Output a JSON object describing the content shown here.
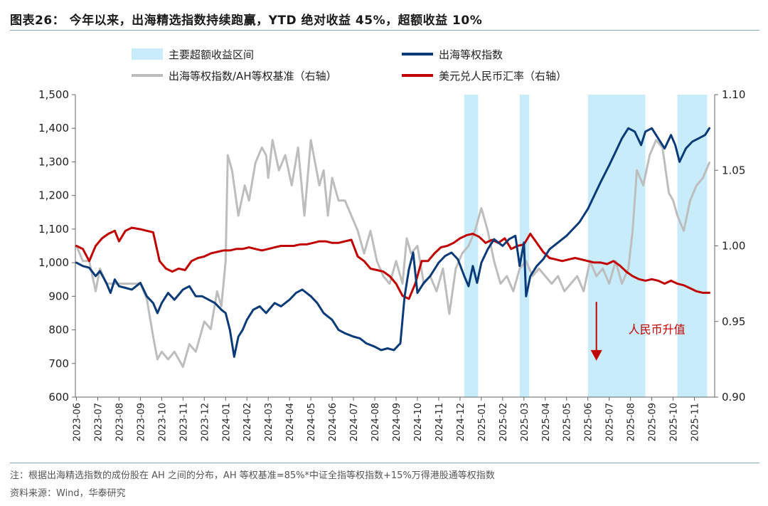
{
  "header": {
    "title": "图表26： 今年以来，出海精选指数持续跑赢，YTD 绝对收益 45%，超额收益 10%"
  },
  "footer": {
    "note": "注：根据出海精选指数的成份股在 AH 之间的分布，AH 等权基准=85%*中证全指等权指数+15%万得港股通等权指数",
    "source": "资料来源：Wind，华泰研究"
  },
  "colors": {
    "shade": "#c9ecfa",
    "navy": "#0b3a78",
    "gray": "#bdbdbd",
    "red": "#c00000",
    "annotation": "#c00000"
  },
  "chart_data": {
    "type": "line",
    "title": "今年以来，出海精选指数持续跑赢，YTD 绝对收益 45%，超额收益 10%",
    "x_start": "2023-06",
    "x_end": "2025-11",
    "categories": [
      "2023-06",
      "2023-07",
      "2023-08",
      "2023-09",
      "2023-10",
      "2023-11",
      "2023-12",
      "2024-01",
      "2024-02",
      "2024-03",
      "2024-04",
      "2024-05",
      "2024-06",
      "2024-07",
      "2024-08",
      "2024-09",
      "2024-10",
      "2024-11",
      "2024-12",
      "2025-01",
      "2025-02",
      "2025-03",
      "2025-04",
      "2025-05",
      "2025-06",
      "2025-07",
      "2025-08",
      "2025-09",
      "2025-10",
      "2025-11"
    ],
    "y_left": {
      "min": 600,
      "max": 1500,
      "ticks": [
        "600",
        "700",
        "800",
        "900",
        "1,000",
        "1,100",
        "1,200",
        "1,300",
        "1,400",
        "1,500"
      ],
      "tick_values": [
        600,
        700,
        800,
        900,
        1000,
        1100,
        1200,
        1300,
        1400,
        1500
      ]
    },
    "y_right": {
      "min": 0.9,
      "max": 1.1,
      "ticks": [
        "0.90",
        "0.95",
        "1.00",
        "1.05",
        "1.10"
      ],
      "tick_values": [
        0.9,
        0.95,
        1.0,
        1.05,
        1.1
      ]
    },
    "legend": [
      {
        "label": "主要超额收益区间",
        "kind": "area",
        "color": "#c9ecfa"
      },
      {
        "label": "出海等权指数",
        "kind": "line",
        "color": "#0b3a78"
      },
      {
        "label": "出海等权指数/AH等权基准（右轴）",
        "kind": "line",
        "color": "#bdbdbd"
      },
      {
        "label": "美元兑人民币汇率（右轴）",
        "kind": "line",
        "color": "#c00000"
      }
    ],
    "shaded_periods": [
      {
        "start": 18.2,
        "end": 18.85
      },
      {
        "start": 20.8,
        "end": 21.25
      },
      {
        "start": 24.0,
        "end": 26.7
      },
      {
        "start": 28.2,
        "end": 29.6
      }
    ],
    "annotation": {
      "text": "人民币升值",
      "x": 24.4,
      "value_top": 0.963,
      "value_bottom": 0.925
    },
    "series": [
      {
        "name": "出海等权指数",
        "axis": "left",
        "color": "#0b3a78",
        "x": [
          0,
          0.3,
          0.6,
          0.9,
          1.1,
          1.4,
          1.6,
          1.8,
          2.0,
          2.3,
          2.6,
          3.0,
          3.3,
          3.6,
          3.8,
          4.0,
          4.3,
          4.6,
          5.0,
          5.3,
          5.6,
          5.9,
          6.2,
          6.5,
          6.8,
          7.0,
          7.2,
          7.4,
          7.6,
          7.8,
          8.0,
          8.3,
          8.6,
          8.9,
          9.3,
          9.6,
          10.0,
          10.3,
          10.6,
          11.0,
          11.3,
          11.6,
          12.0,
          12.3,
          12.6,
          13.0,
          13.3,
          13.6,
          14.0,
          14.3,
          14.6,
          14.9,
          15.2,
          15.4,
          15.6,
          15.8,
          16.0,
          16.3,
          16.6,
          17.0,
          17.3,
          17.6,
          17.9,
          18.2,
          18.4,
          18.6,
          18.8,
          19.0,
          19.3,
          19.6,
          20.0,
          20.3,
          20.6,
          20.8,
          21.0,
          21.1,
          21.3,
          21.6,
          21.9,
          22.2,
          22.6,
          23.0,
          23.3,
          23.6,
          24.0,
          24.3,
          24.6,
          25.0,
          25.3,
          25.6,
          25.9,
          26.2,
          26.5,
          26.7,
          27.0,
          27.3,
          27.6,
          27.9,
          28.1,
          28.3,
          28.6,
          28.9,
          29.2,
          29.5,
          29.7
        ],
        "values": [
          1000,
          990,
          985,
          960,
          975,
          940,
          910,
          950,
          930,
          925,
          920,
          940,
          900,
          880,
          850,
          880,
          910,
          890,
          920,
          930,
          900,
          900,
          890,
          880,
          860,
          850,
          800,
          720,
          780,
          800,
          830,
          860,
          870,
          850,
          880,
          870,
          890,
          910,
          920,
          900,
          880,
          850,
          830,
          800,
          790,
          780,
          775,
          760,
          750,
          740,
          745,
          740,
          760,
          900,
          980,
          1030,
          910,
          940,
          960,
          1000,
          1020,
          1030,
          1010,
          960,
          930,
          990,
          940,
          1000,
          1040,
          1070,
          1050,
          1070,
          1080,
          990,
          1060,
          900,
          960,
          990,
          1010,
          1040,
          1060,
          1080,
          1100,
          1120,
          1160,
          1200,
          1240,
          1290,
          1330,
          1370,
          1400,
          1390,
          1350,
          1390,
          1400,
          1370,
          1340,
          1380,
          1350,
          1300,
          1340,
          1360,
          1370,
          1380,
          1400
        ]
      },
      {
        "name": "出海等权指数/AH等权基准（右轴）",
        "axis": "right",
        "color": "#bdbdbd",
        "x": [
          0,
          0.3,
          0.6,
          0.9,
          1.1,
          1.4,
          1.7,
          2.0,
          2.3,
          2.6,
          3.0,
          3.3,
          3.6,
          3.8,
          4.0,
          4.3,
          4.6,
          5.0,
          5.3,
          5.6,
          6.0,
          6.3,
          6.6,
          6.8,
          7.0,
          7.1,
          7.3,
          7.6,
          7.9,
          8.1,
          8.4,
          8.7,
          8.9,
          9.0,
          9.2,
          9.5,
          9.8,
          10.1,
          10.4,
          10.7,
          11.0,
          11.2,
          11.4,
          11.6,
          11.8,
          12.0,
          12.3,
          12.6,
          12.9,
          13.2,
          13.5,
          13.8,
          14.1,
          14.4,
          14.7,
          15.0,
          15.3,
          15.5,
          15.7,
          16.0,
          16.3,
          16.6,
          16.9,
          17.2,
          17.5,
          17.8,
          18.1,
          18.4,
          18.7,
          19.0,
          19.3,
          19.6,
          19.9,
          20.2,
          20.5,
          20.8,
          21.1,
          21.4,
          21.7,
          22.0,
          22.3,
          22.6,
          22.9,
          23.2,
          23.5,
          23.8,
          24.1,
          24.4,
          24.7,
          25.0,
          25.3,
          25.6,
          25.9,
          26.1,
          26.3,
          26.6,
          26.9,
          27.2,
          27.5,
          27.8,
          28.0,
          28.2,
          28.5,
          28.8,
          29.1,
          29.4,
          29.7
        ],
        "values": [
          1.0,
          0.99,
          0.99,
          0.97,
          0.985,
          0.975,
          0.975,
          0.975,
          0.975,
          0.975,
          0.975,
          0.965,
          0.94,
          0.925,
          0.93,
          0.925,
          0.93,
          0.92,
          0.935,
          0.93,
          0.95,
          0.945,
          0.97,
          0.96,
          0.99,
          1.06,
          1.05,
          1.02,
          1.04,
          1.03,
          1.055,
          1.065,
          1.06,
          1.045,
          1.07,
          1.05,
          1.06,
          1.04,
          1.065,
          1.02,
          1.07,
          1.055,
          1.04,
          1.05,
          1.02,
          1.045,
          1.03,
          1.03,
          1.02,
          1.01,
          0.995,
          1.01,
          0.99,
          0.98,
          0.975,
          0.99,
          0.975,
          1.005,
          0.995,
          1.0,
          0.975,
          0.98,
          0.97,
          0.985,
          0.955,
          0.985,
          0.995,
          1.0,
          1.01,
          1.025,
          1.01,
          0.99,
          0.975,
          0.98,
          0.97,
          0.985,
          0.99,
          0.98,
          0.985,
          0.98,
          0.975,
          0.98,
          0.97,
          0.975,
          0.98,
          0.97,
          0.99,
          0.98,
          0.985,
          0.975,
          0.99,
          0.975,
          0.985,
          1.01,
          1.05,
          1.04,
          1.06,
          1.07,
          1.065,
          1.035,
          1.03,
          1.02,
          1.01,
          1.03,
          1.04,
          1.045,
          1.055
        ]
      },
      {
        "name": "美元兑人民币汇率（右轴）",
        "axis": "right",
        "color": "#c00000",
        "x": [
          0,
          0.3,
          0.6,
          0.9,
          1.2,
          1.5,
          1.8,
          2.0,
          2.3,
          2.6,
          3.0,
          3.3,
          3.6,
          3.9,
          4.2,
          4.5,
          4.8,
          5.1,
          5.4,
          5.7,
          6.0,
          6.3,
          6.6,
          6.9,
          7.2,
          7.5,
          7.8,
          8.1,
          8.4,
          8.7,
          9.0,
          9.3,
          9.6,
          9.9,
          10.2,
          10.5,
          10.8,
          11.1,
          11.4,
          11.7,
          12.0,
          12.3,
          12.6,
          12.9,
          13.2,
          13.5,
          13.8,
          14.1,
          14.4,
          14.7,
          15.0,
          15.3,
          15.6,
          15.9,
          16.2,
          16.5,
          16.8,
          17.1,
          17.4,
          17.7,
          18.0,
          18.3,
          18.6,
          18.9,
          19.2,
          19.5,
          19.8,
          20.1,
          20.4,
          20.7,
          21.0,
          21.3,
          21.6,
          21.9,
          22.2,
          22.5,
          22.8,
          23.1,
          23.4,
          23.7,
          24.0,
          24.3,
          24.6,
          24.9,
          25.2,
          25.5,
          25.8,
          26.1,
          26.4,
          26.7,
          27.0,
          27.3,
          27.6,
          27.9,
          28.2,
          28.5,
          28.8,
          29.1,
          29.4,
          29.7
        ],
        "values": [
          1.0,
          0.998,
          0.99,
          1.0,
          1.005,
          1.008,
          1.01,
          1.003,
          1.01,
          1.012,
          1.011,
          1.01,
          1.009,
          0.99,
          0.985,
          0.983,
          0.985,
          0.984,
          0.99,
          0.992,
          0.993,
          0.995,
          0.996,
          0.997,
          0.997,
          0.998,
          0.998,
          0.999,
          0.998,
          0.997,
          0.998,
          0.999,
          1.0,
          1.0,
          1.0,
          1.001,
          1.001,
          1.002,
          1.003,
          1.003,
          1.002,
          1.002,
          1.003,
          1.004,
          0.993,
          0.99,
          0.985,
          0.984,
          0.983,
          0.98,
          0.975,
          0.967,
          0.965,
          0.975,
          0.99,
          0.99,
          0.995,
          0.999,
          1.0,
          1.002,
          1.005,
          1.007,
          1.008,
          1.006,
          1.002,
          1.004,
          1.002,
          1.005,
          0.998,
          1.0,
          1.001,
          1.008,
          1.002,
          0.996,
          0.992,
          0.991,
          0.99,
          0.991,
          0.992,
          0.991,
          0.99,
          0.989,
          0.989,
          0.988,
          0.99,
          0.987,
          0.983,
          0.98,
          0.978,
          0.977,
          0.978,
          0.977,
          0.975,
          0.977,
          0.975,
          0.974,
          0.972,
          0.97,
          0.969,
          0.969
        ]
      }
    ]
  }
}
